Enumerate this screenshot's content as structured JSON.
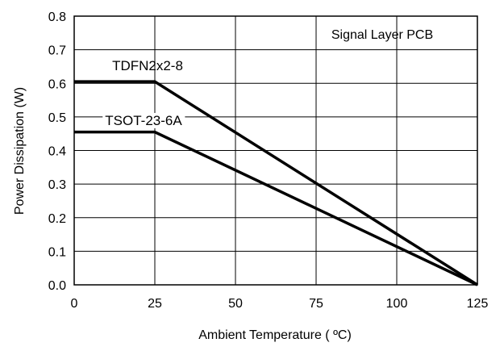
{
  "chart_data": {
    "type": "line",
    "title": "",
    "xlabel": "Ambient Temperature ( ºC)",
    "ylabel": "Power Dissipation (W)",
    "xlim": [
      0,
      125
    ],
    "ylim": [
      0,
      0.8
    ],
    "x_ticks": [
      0,
      25,
      50,
      75,
      100,
      125
    ],
    "x_tick_labels": [
      "0",
      "25",
      "50",
      "75",
      "100",
      "125"
    ],
    "y_ticks": [
      0.0,
      0.1,
      0.2,
      0.3,
      0.4,
      0.5,
      0.6,
      0.7,
      0.8
    ],
    "y_tick_labels": [
      "0.0",
      "0.1",
      "0.2",
      "0.3",
      "0.4",
      "0.5",
      "0.6",
      "0.7",
      "0.8"
    ],
    "grid": true,
    "legend": "none",
    "annotation": "Signal Layer PCB",
    "series": [
      {
        "name": "TDFN2x2-8",
        "x": [
          0,
          25,
          125
        ],
        "y": [
          0.605,
          0.605,
          0
        ]
      },
      {
        "name": "TSOT-23-6A",
        "x": [
          0,
          25,
          125
        ],
        "y": [
          0.455,
          0.455,
          0
        ]
      }
    ],
    "colors": {
      "line": "#000000",
      "grid": "#000000",
      "background": "#ffffff"
    }
  }
}
